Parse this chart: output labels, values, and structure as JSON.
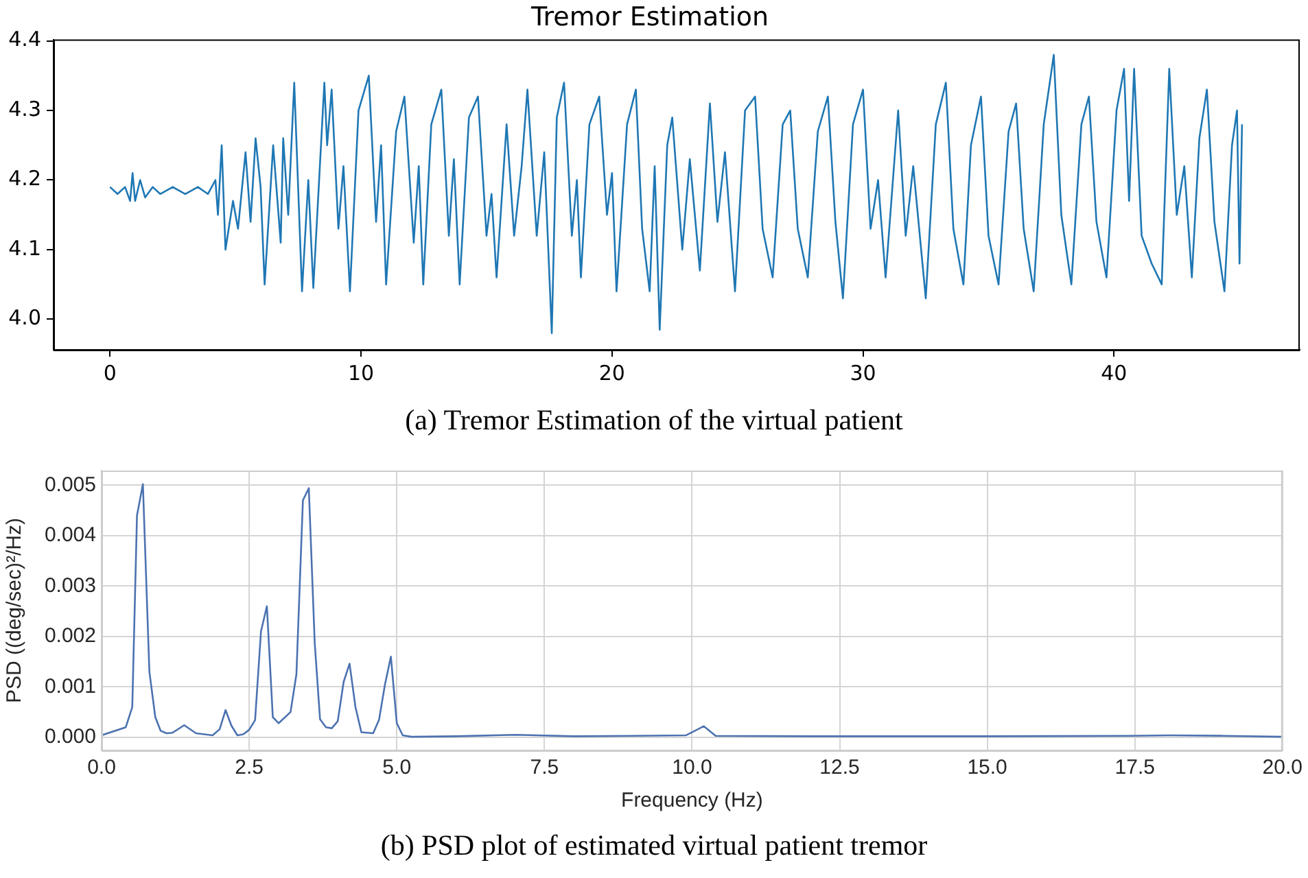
{
  "chart_data": [
    {
      "type": "line",
      "title": "Tremor Estimation",
      "annotations": [
        "(a) Tremor Estimation of the virtual patient"
      ],
      "xlim": [
        -2.25,
        47.4
      ],
      "ylim": [
        3.956,
        4.402
      ],
      "xticks": [
        0,
        10,
        20,
        30,
        40
      ],
      "yticks": [
        {
          "value": 4.0,
          "label": "4.0"
        },
        4.1,
        4.2,
        4.3,
        {
          "value": 4.4,
          "label": "4.4"
        }
      ],
      "grid": false,
      "series": [
        {
          "color": "#1f77b4",
          "x": [
            0,
            0.3,
            0.6,
            0.8,
            0.9,
            1.0,
            1.2,
            1.4,
            1.7,
            2.0,
            2.5,
            3.0,
            3.5,
            3.9,
            4.2,
            4.3,
            4.45,
            4.6,
            4.9,
            5.1,
            5.4,
            5.6,
            5.8,
            6.0,
            6.16,
            6.5,
            6.8,
            6.9,
            7.1,
            7.34,
            7.65,
            7.9,
            8.1,
            8.54,
            8.65,
            8.83,
            9.1,
            9.3,
            9.56,
            9.9,
            10.31,
            10.6,
            10.8,
            11.0,
            11.4,
            11.73,
            12.1,
            12.3,
            12.48,
            12.8,
            13.2,
            13.5,
            13.7,
            13.93,
            14.3,
            14.66,
            15.0,
            15.2,
            15.4,
            15.8,
            16.1,
            16.4,
            16.63,
            17.0,
            17.3,
            17.6,
            17.8,
            18.09,
            18.4,
            18.6,
            18.76,
            19.1,
            19.49,
            19.8,
            20.0,
            20.18,
            20.6,
            20.95,
            21.2,
            21.5,
            21.7,
            21.9,
            22.2,
            22.4,
            22.8,
            23.1,
            23.5,
            23.9,
            24.2,
            24.5,
            24.9,
            25.3,
            25.7,
            26.0,
            26.4,
            26.8,
            27.1,
            27.4,
            27.8,
            28.2,
            28.6,
            28.9,
            29.2,
            29.6,
            30.0,
            30.3,
            30.6,
            30.9,
            31.4,
            31.7,
            32.0,
            32.5,
            32.9,
            33.3,
            33.6,
            34.0,
            34.3,
            34.7,
            35.0,
            35.4,
            35.8,
            36.1,
            36.4,
            36.8,
            37.2,
            37.6,
            37.9,
            38.3,
            38.7,
            39.0,
            39.3,
            39.7,
            40.1,
            40.4,
            40.6,
            40.8,
            41.1,
            41.5,
            41.9,
            42.2,
            42.5,
            42.8,
            43.1,
            43.4,
            43.7,
            44.0,
            44.4,
            44.7,
            44.9,
            45.0,
            45.1
          ],
          "values": [
            4.19,
            4.18,
            4.19,
            4.17,
            4.21,
            4.17,
            4.2,
            4.175,
            4.19,
            4.18,
            4.19,
            4.18,
            4.19,
            4.18,
            4.2,
            4.15,
            4.25,
            4.1,
            4.17,
            4.13,
            4.24,
            4.14,
            4.26,
            4.19,
            4.05,
            4.25,
            4.11,
            4.26,
            4.15,
            4.34,
            4.04,
            4.2,
            4.045,
            4.34,
            4.25,
            4.33,
            4.13,
            4.22,
            4.04,
            4.3,
            4.35,
            4.14,
            4.25,
            4.05,
            4.27,
            4.32,
            4.11,
            4.22,
            4.05,
            4.28,
            4.33,
            4.12,
            4.23,
            4.05,
            4.29,
            4.32,
            4.12,
            4.18,
            4.06,
            4.28,
            4.12,
            4.22,
            4.33,
            4.12,
            4.24,
            3.98,
            4.29,
            4.34,
            4.12,
            4.2,
            4.06,
            4.28,
            4.32,
            4.15,
            4.21,
            4.04,
            4.28,
            4.33,
            4.13,
            4.04,
            4.22,
            3.985,
            4.25,
            4.29,
            4.1,
            4.23,
            4.07,
            4.31,
            4.14,
            4.24,
            4.04,
            4.3,
            4.32,
            4.13,
            4.06,
            4.28,
            4.3,
            4.13,
            4.06,
            4.27,
            4.32,
            4.14,
            4.03,
            4.28,
            4.33,
            4.13,
            4.2,
            4.06,
            4.3,
            4.12,
            4.22,
            4.03,
            4.28,
            4.34,
            4.13,
            4.05,
            4.25,
            4.32,
            4.12,
            4.05,
            4.27,
            4.31,
            4.13,
            4.04,
            4.28,
            4.38,
            4.15,
            4.05,
            4.28,
            4.32,
            4.14,
            4.06,
            4.3,
            4.36,
            4.17,
            4.36,
            4.12,
            4.08,
            4.05,
            4.36,
            4.15,
            4.22,
            4.06,
            4.26,
            4.33,
            4.14,
            4.04,
            4.25,
            4.3,
            4.08,
            4.28
          ]
        }
      ]
    },
    {
      "type": "line",
      "xlabel": "Frequency (Hz)",
      "ylabel": "PSD ((deg/sec)²/Hz)",
      "annotations": [
        "(b) PSD plot of estimated virtual patient tremor"
      ],
      "xlim": [
        0,
        20
      ],
      "ylim": [
        -0.00026,
        0.00529
      ],
      "xticks": [
        {
          "value": 0,
          "label": "0.0"
        },
        2.5,
        {
          "value": 5,
          "label": "5.0"
        },
        7.5,
        {
          "value": 10,
          "label": "10.0"
        },
        12.5,
        {
          "value": 15,
          "label": "15.0"
        },
        17.5,
        {
          "value": 20,
          "label": "20.0"
        }
      ],
      "yticks": [
        {
          "value": 0,
          "label": "0.000"
        },
        0.001,
        0.002,
        0.003,
        0.004,
        0.005
      ],
      "grid": true,
      "series": [
        {
          "color": "#4c72b0",
          "x": [
            0,
            0.41,
            0.52,
            0.6,
            0.7,
            0.81,
            0.91,
            1.0,
            1.1,
            1.2,
            1.4,
            1.6,
            1.88,
            2.0,
            2.1,
            2.2,
            2.3,
            2.4,
            2.5,
            2.6,
            2.7,
            2.8,
            2.9,
            3.0,
            3.2,
            3.3,
            3.41,
            3.51,
            3.61,
            3.7,
            3.8,
            3.9,
            4.0,
            4.1,
            4.2,
            4.3,
            4.4,
            4.6,
            4.7,
            4.8,
            4.9,
            5.0,
            5.1,
            5.25,
            6.0,
            7.0,
            8.0,
            9.0,
            9.9,
            10.2,
            10.4,
            12.0,
            15.0,
            17.4,
            18.1,
            19.0,
            20.0
          ],
          "values": [
            4e-05,
            0.0002,
            0.0006,
            0.0044,
            0.00502,
            0.0013,
            0.0004,
            0.00013,
            8e-05,
            9e-05,
            0.00024,
            8e-05,
            4e-05,
            0.00016,
            0.00054,
            0.00023,
            4e-05,
            6e-05,
            0.00015,
            0.00034,
            0.0021,
            0.0026,
            0.0004,
            0.00028,
            0.0005,
            0.00125,
            0.0047,
            0.00494,
            0.00187,
            0.00036,
            0.0002,
            0.00018,
            0.00032,
            0.0011,
            0.00146,
            0.0006,
            0.0001,
            8e-05,
            0.00035,
            0.00105,
            0.0016,
            0.00028,
            4e-05,
            1e-05,
            2e-05,
            5e-05,
            2e-05,
            3e-05,
            4e-05,
            0.00022,
            3e-05,
            2e-05,
            2e-05,
            3e-05,
            4e-05,
            3e-05,
            1e-05
          ]
        }
      ]
    }
  ]
}
